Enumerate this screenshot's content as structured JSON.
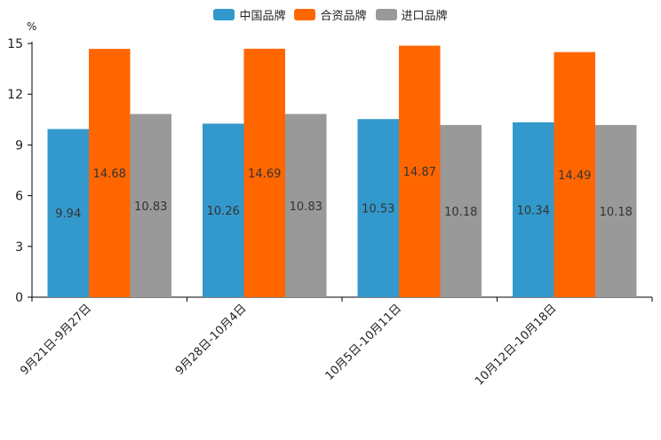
{
  "chart_data": {
    "type": "bar",
    "title": "",
    "xlabel": "",
    "ylabel": "%",
    "ylim": [
      0,
      15
    ],
    "yticks": [
      0,
      3,
      6,
      9,
      12,
      15
    ],
    "legend_position": "top-center",
    "grid": false,
    "categories": [
      "9月21日-9月27日",
      "9月28日-10月4日",
      "10月5日-10月11日",
      "10月12日-10月18日"
    ],
    "series": [
      {
        "name": "中国品牌",
        "color": "#3399cc",
        "values": [
          9.94,
          10.26,
          10.53,
          10.34
        ]
      },
      {
        "name": "合资品牌",
        "color": "#ff6600",
        "values": [
          14.68,
          14.69,
          14.87,
          14.49
        ]
      },
      {
        "name": "进口品牌",
        "color": "#999999",
        "values": [
          10.83,
          10.83,
          10.18,
          10.18
        ]
      }
    ]
  }
}
